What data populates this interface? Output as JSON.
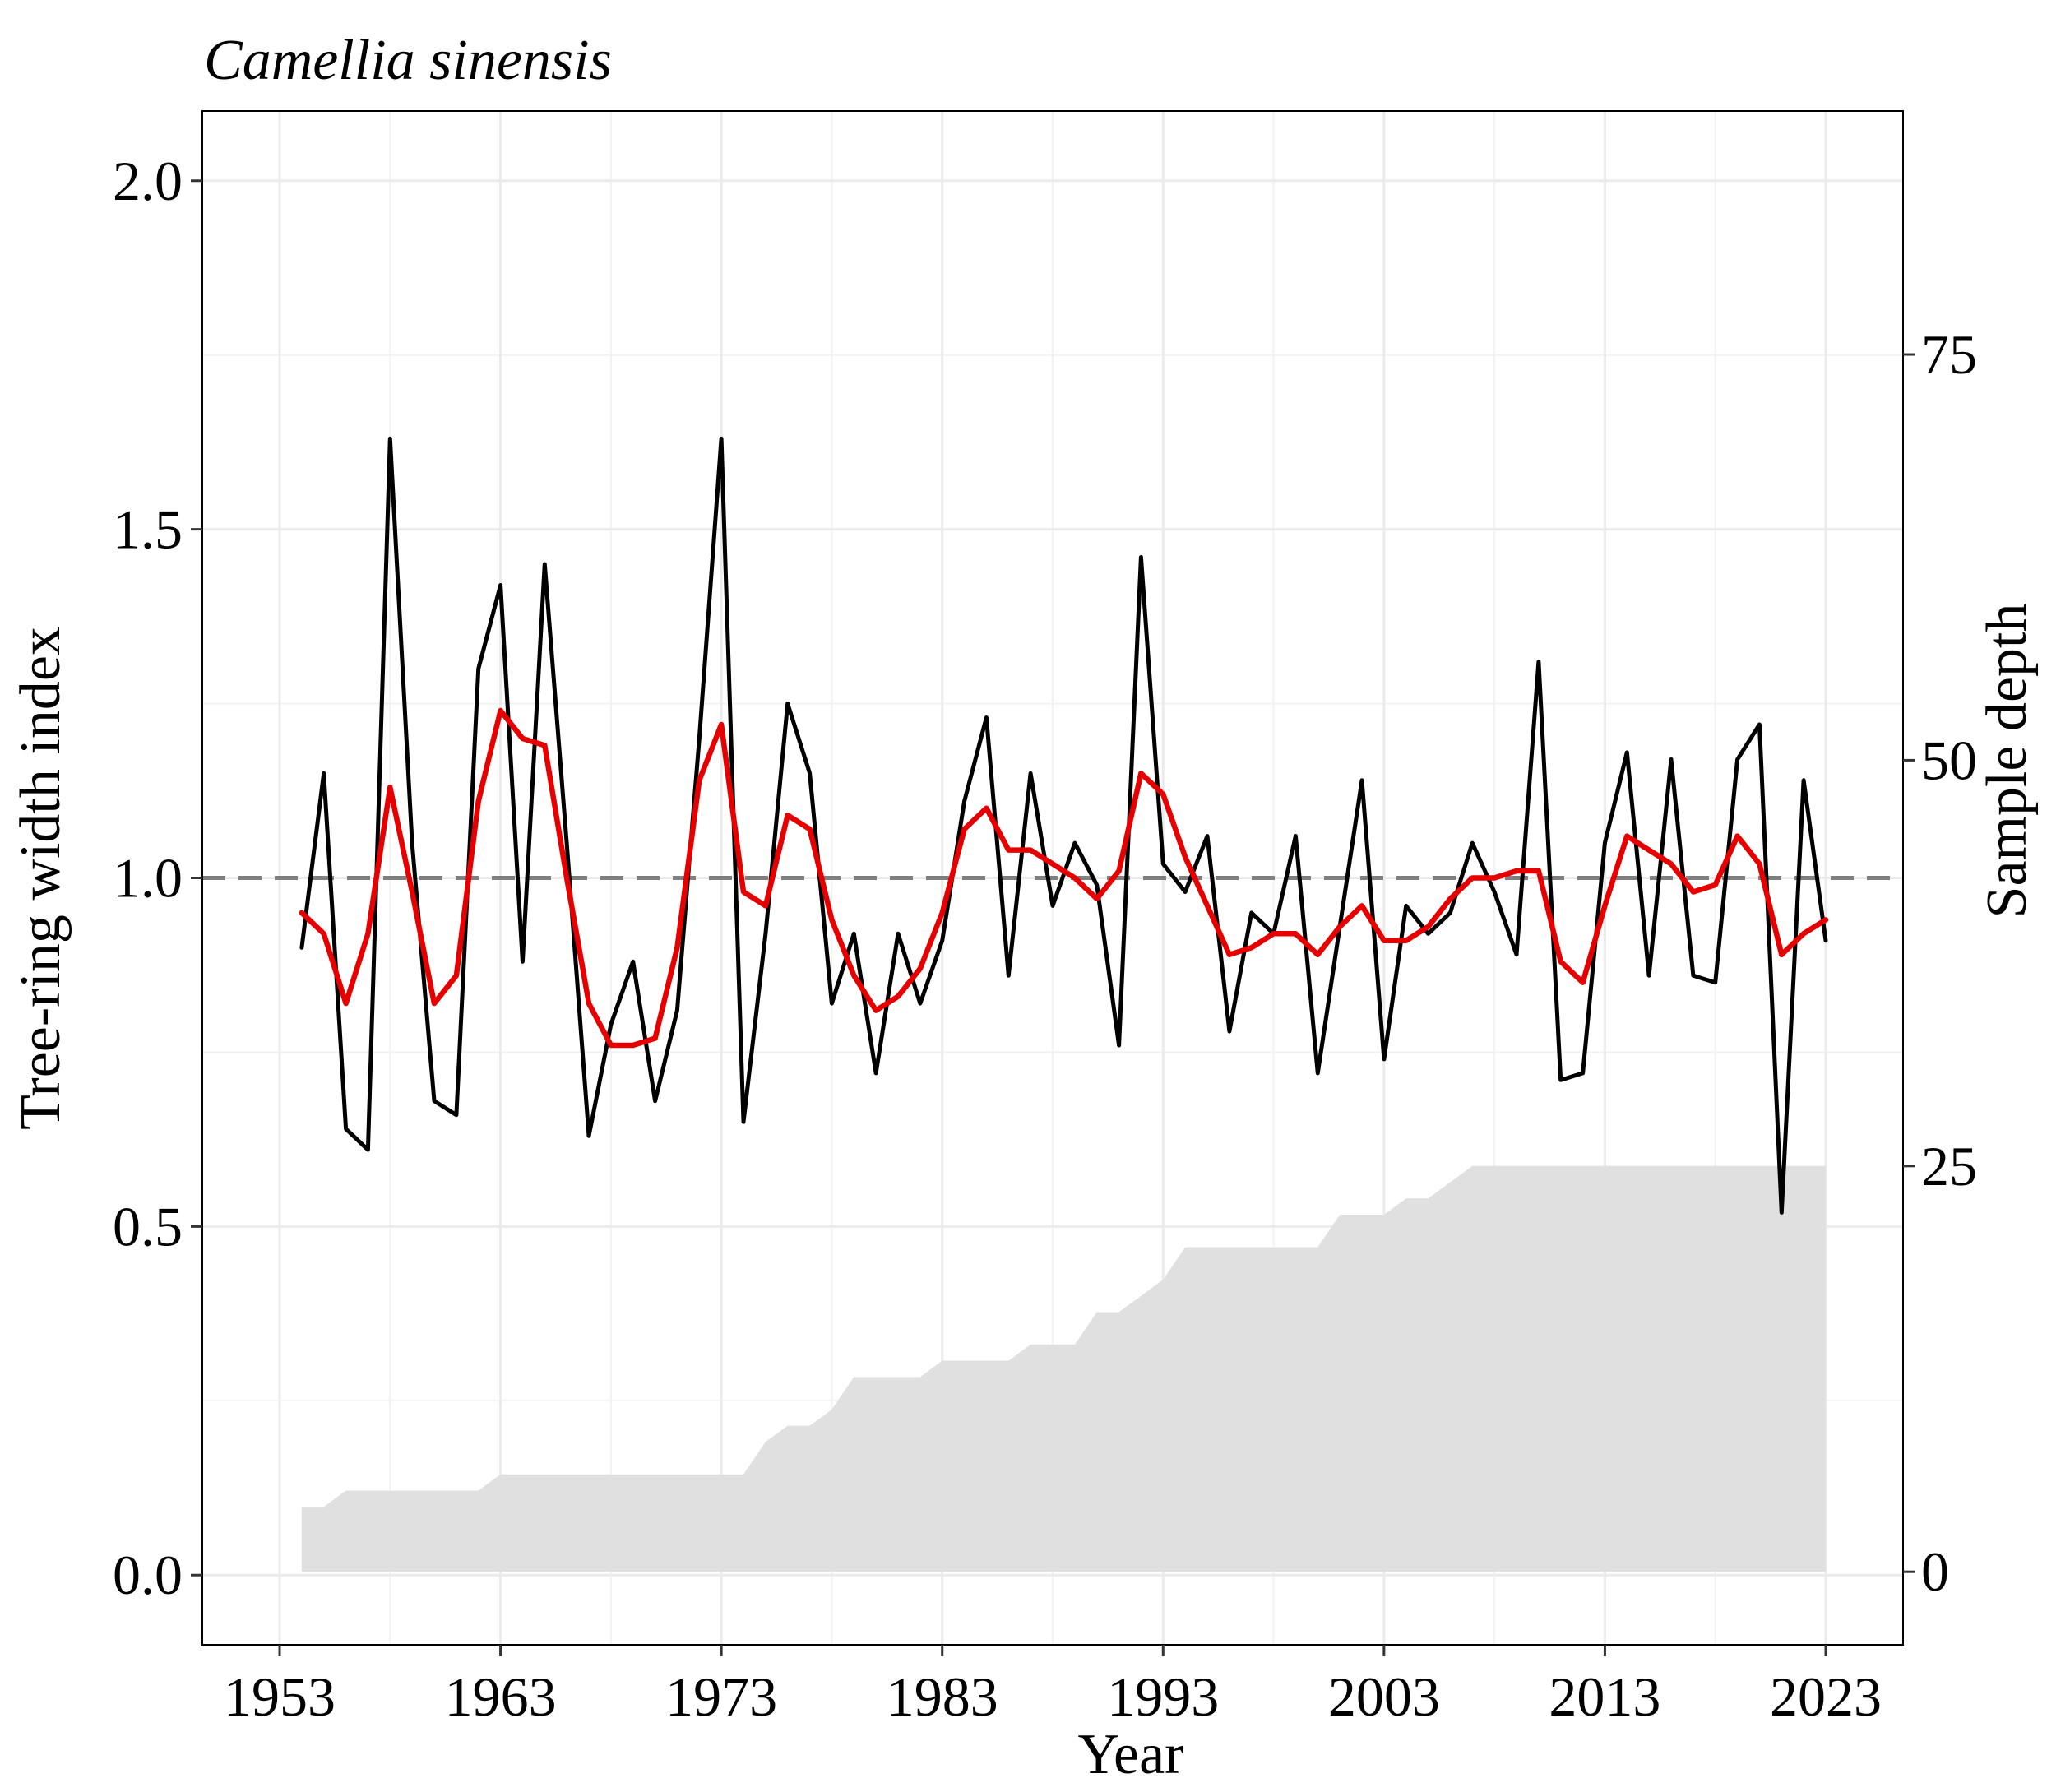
{
  "chart_data": {
    "type": "line",
    "title": "Camellia sinensis",
    "xlabel": "Year",
    "ylabel": "Tree-ring width index",
    "y2label": "Sample depth",
    "xlim": [
      1949.5,
      2026.5
    ],
    "ylim": [
      -0.1,
      2.1
    ],
    "y2lim": [
      -4.5,
      90
    ],
    "x_ticks": [
      "1953",
      "1963",
      "1973",
      "1983",
      "1993",
      "2003",
      "2013",
      "2023"
    ],
    "y_ticks": [
      "0.0",
      "0.5",
      "1.0",
      "1.5",
      "2.0"
    ],
    "y2_ticks": [
      "0",
      "25",
      "50",
      "75"
    ],
    "reference_line": 1.0,
    "grid": true,
    "colors": {
      "index": "#000000",
      "smooth": "#e60000",
      "depth": "#e0e0e0",
      "reference": "#808080"
    },
    "x": [
      1954,
      1955,
      1956,
      1957,
      1958,
      1959,
      1960,
      1961,
      1962,
      1963,
      1964,
      1965,
      1966,
      1967,
      1968,
      1969,
      1970,
      1971,
      1972,
      1973,
      1974,
      1975,
      1976,
      1977,
      1978,
      1979,
      1980,
      1981,
      1982,
      1983,
      1984,
      1985,
      1986,
      1987,
      1988,
      1989,
      1990,
      1991,
      1992,
      1993,
      1994,
      1995,
      1996,
      1997,
      1998,
      1999,
      2000,
      2001,
      2002,
      2003,
      2004,
      2005,
      2006,
      2007,
      2008,
      2009,
      2010,
      2011,
      2012,
      2013,
      2014,
      2015,
      2016,
      2017,
      2018,
      2019,
      2020,
      2021,
      2022,
      2023
    ],
    "series": [
      {
        "name": "Tree-ring width index",
        "values": [
          0.9,
          1.15,
          0.64,
          0.61,
          1.63,
          1.05,
          0.68,
          0.66,
          1.3,
          1.42,
          0.88,
          1.45,
          1.05,
          0.63,
          0.79,
          0.88,
          0.68,
          0.81,
          1.2,
          1.63,
          0.65,
          0.92,
          1.25,
          1.15,
          0.82,
          0.92,
          0.72,
          0.92,
          0.82,
          0.91,
          1.11,
          1.23,
          0.86,
          1.15,
          0.96,
          1.05,
          0.99,
          0.76,
          1.46,
          1.02,
          0.98,
          1.06,
          0.78,
          0.95,
          0.92,
          1.06,
          0.72,
          0.93,
          1.14,
          0.74,
          0.96,
          0.92,
          0.95,
          1.05,
          0.98,
          0.89,
          1.31,
          0.71,
          0.72,
          1.05,
          1.18,
          0.86,
          1.17,
          0.86,
          0.85,
          1.17,
          1.22,
          0.52,
          1.14,
          0.91
        ]
      },
      {
        "name": "Smoothed",
        "values": [
          0.95,
          0.92,
          0.82,
          0.92,
          1.13,
          0.98,
          0.82,
          0.86,
          1.11,
          1.24,
          1.2,
          1.19,
          1.0,
          0.82,
          0.76,
          0.76,
          0.77,
          0.9,
          1.14,
          1.22,
          0.98,
          0.96,
          1.09,
          1.07,
          0.94,
          0.86,
          0.81,
          0.83,
          0.87,
          0.95,
          1.07,
          1.1,
          1.04,
          1.04,
          1.02,
          1.0,
          0.97,
          1.01,
          1.15,
          1.12,
          1.03,
          0.96,
          0.89,
          0.9,
          0.92,
          0.92,
          0.89,
          0.93,
          0.96,
          0.91,
          0.91,
          0.93,
          0.97,
          1.0,
          1.0,
          1.01,
          1.01,
          0.88,
          0.85,
          0.96,
          1.06,
          1.04,
          1.02,
          0.98,
          0.99,
          1.06,
          1.02,
          0.89,
          0.92,
          0.94
        ]
      },
      {
        "name": "Sample depth",
        "axis": "y2",
        "values": [
          4,
          4,
          5,
          5,
          5,
          5,
          5,
          5,
          5,
          6,
          6,
          6,
          6,
          6,
          6,
          6,
          6,
          6,
          6,
          6,
          6,
          8,
          9,
          9,
          10,
          12,
          12,
          12,
          12,
          13,
          13,
          13,
          13,
          14,
          14,
          14,
          16,
          16,
          17,
          18,
          20,
          20,
          20,
          20,
          20,
          20,
          20,
          22,
          22,
          22,
          23,
          23,
          24,
          25,
          25,
          25,
          25,
          25,
          25,
          25,
          25,
          25,
          25,
          25,
          25,
          25,
          25,
          25,
          25,
          25
        ]
      }
    ]
  }
}
